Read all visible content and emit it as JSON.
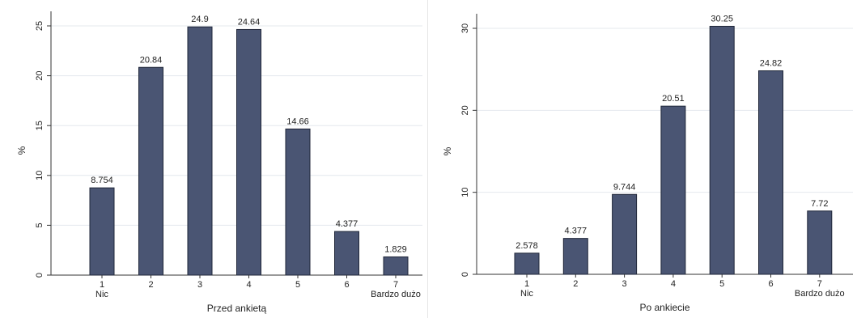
{
  "chart_data": [
    {
      "type": "bar",
      "categories": [
        "1",
        "2",
        "3",
        "4",
        "5",
        "6",
        "7"
      ],
      "category_sublabels": [
        "Nic",
        "",
        "",
        "",
        "",
        "",
        "Bardzo dużo"
      ],
      "values": [
        8.754,
        20.84,
        24.9,
        24.64,
        14.66,
        4.377,
        1.829
      ],
      "value_labels": [
        "8.754",
        "20.84",
        "24.9",
        "24.64",
        "14.66",
        "4.377",
        "1.829"
      ],
      "xlabel": "Przed ankietą",
      "ylabel": "%",
      "ylim": [
        0,
        25
      ],
      "yticks": [
        0,
        5,
        10,
        15,
        20,
        25
      ],
      "grid": true
    },
    {
      "type": "bar",
      "categories": [
        "1",
        "2",
        "3",
        "4",
        "5",
        "6",
        "7"
      ],
      "category_sublabels": [
        "Nic",
        "",
        "",
        "",
        "",
        "",
        "Bardzo dużo"
      ],
      "values": [
        2.578,
        4.377,
        9.744,
        20.51,
        30.25,
        24.82,
        7.72
      ],
      "value_labels": [
        "2.578",
        "4.377",
        "9.744",
        "20.51",
        "30.25",
        "24.82",
        "7.72"
      ],
      "xlabel": "Po ankiecie",
      "ylabel": "%",
      "ylim": [
        0,
        30
      ],
      "yticks": [
        0,
        10,
        20,
        30
      ],
      "grid": true
    }
  ],
  "colors": {
    "bar": "#4a5573",
    "bar_edge": "#1f2638",
    "grid": "#e4e8ee",
    "axis": "#333333"
  }
}
